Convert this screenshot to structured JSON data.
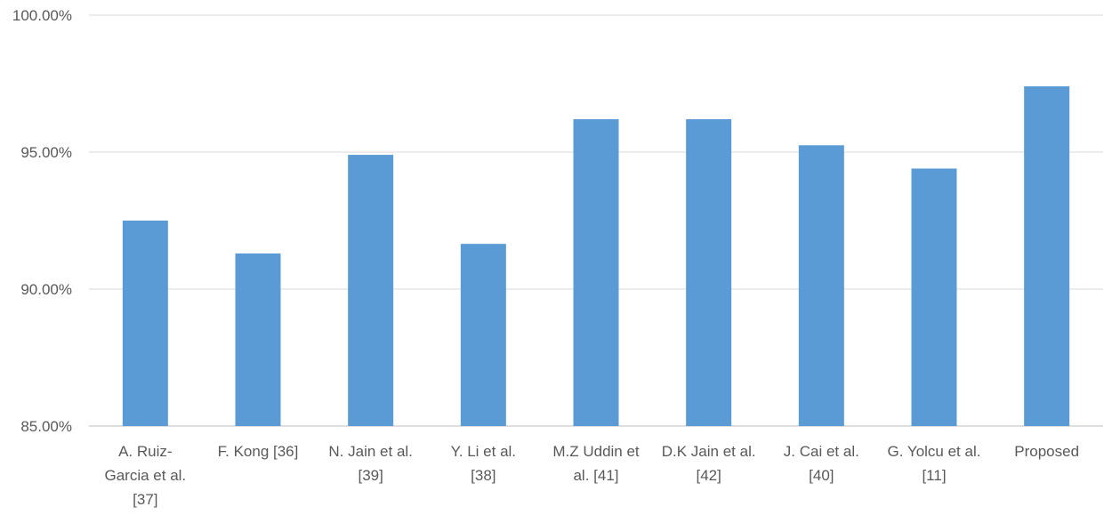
{
  "chart_data": {
    "type": "bar",
    "categories": [
      [
        "A. Ruiz-",
        "Garcia et al.",
        "[37]"
      ],
      [
        "F. Kong [36]"
      ],
      [
        "N. Jain et al.",
        "[39]"
      ],
      [
        "Y. Li et al.",
        "[38]"
      ],
      [
        "M.Z Uddin et",
        "al. [41]"
      ],
      [
        "D.K Jain et al.",
        "[42]"
      ],
      [
        "J. Cai et al.",
        "[40]"
      ],
      [
        "G. Yolcu et al.",
        "[11]"
      ],
      [
        "Proposed"
      ]
    ],
    "values": [
      92.5,
      91.3,
      94.9,
      91.65,
      96.2,
      96.2,
      95.25,
      94.4,
      97.4
    ],
    "ylim": [
      85,
      100
    ],
    "yticks": [
      85,
      90,
      95,
      100
    ],
    "ytick_labels": [
      "85.00%",
      "90.00%",
      "95.00%",
      "100.00%"
    ],
    "grid": true,
    "bar_color": "#5b9bd5",
    "title": "",
    "xlabel": "",
    "ylabel": ""
  }
}
